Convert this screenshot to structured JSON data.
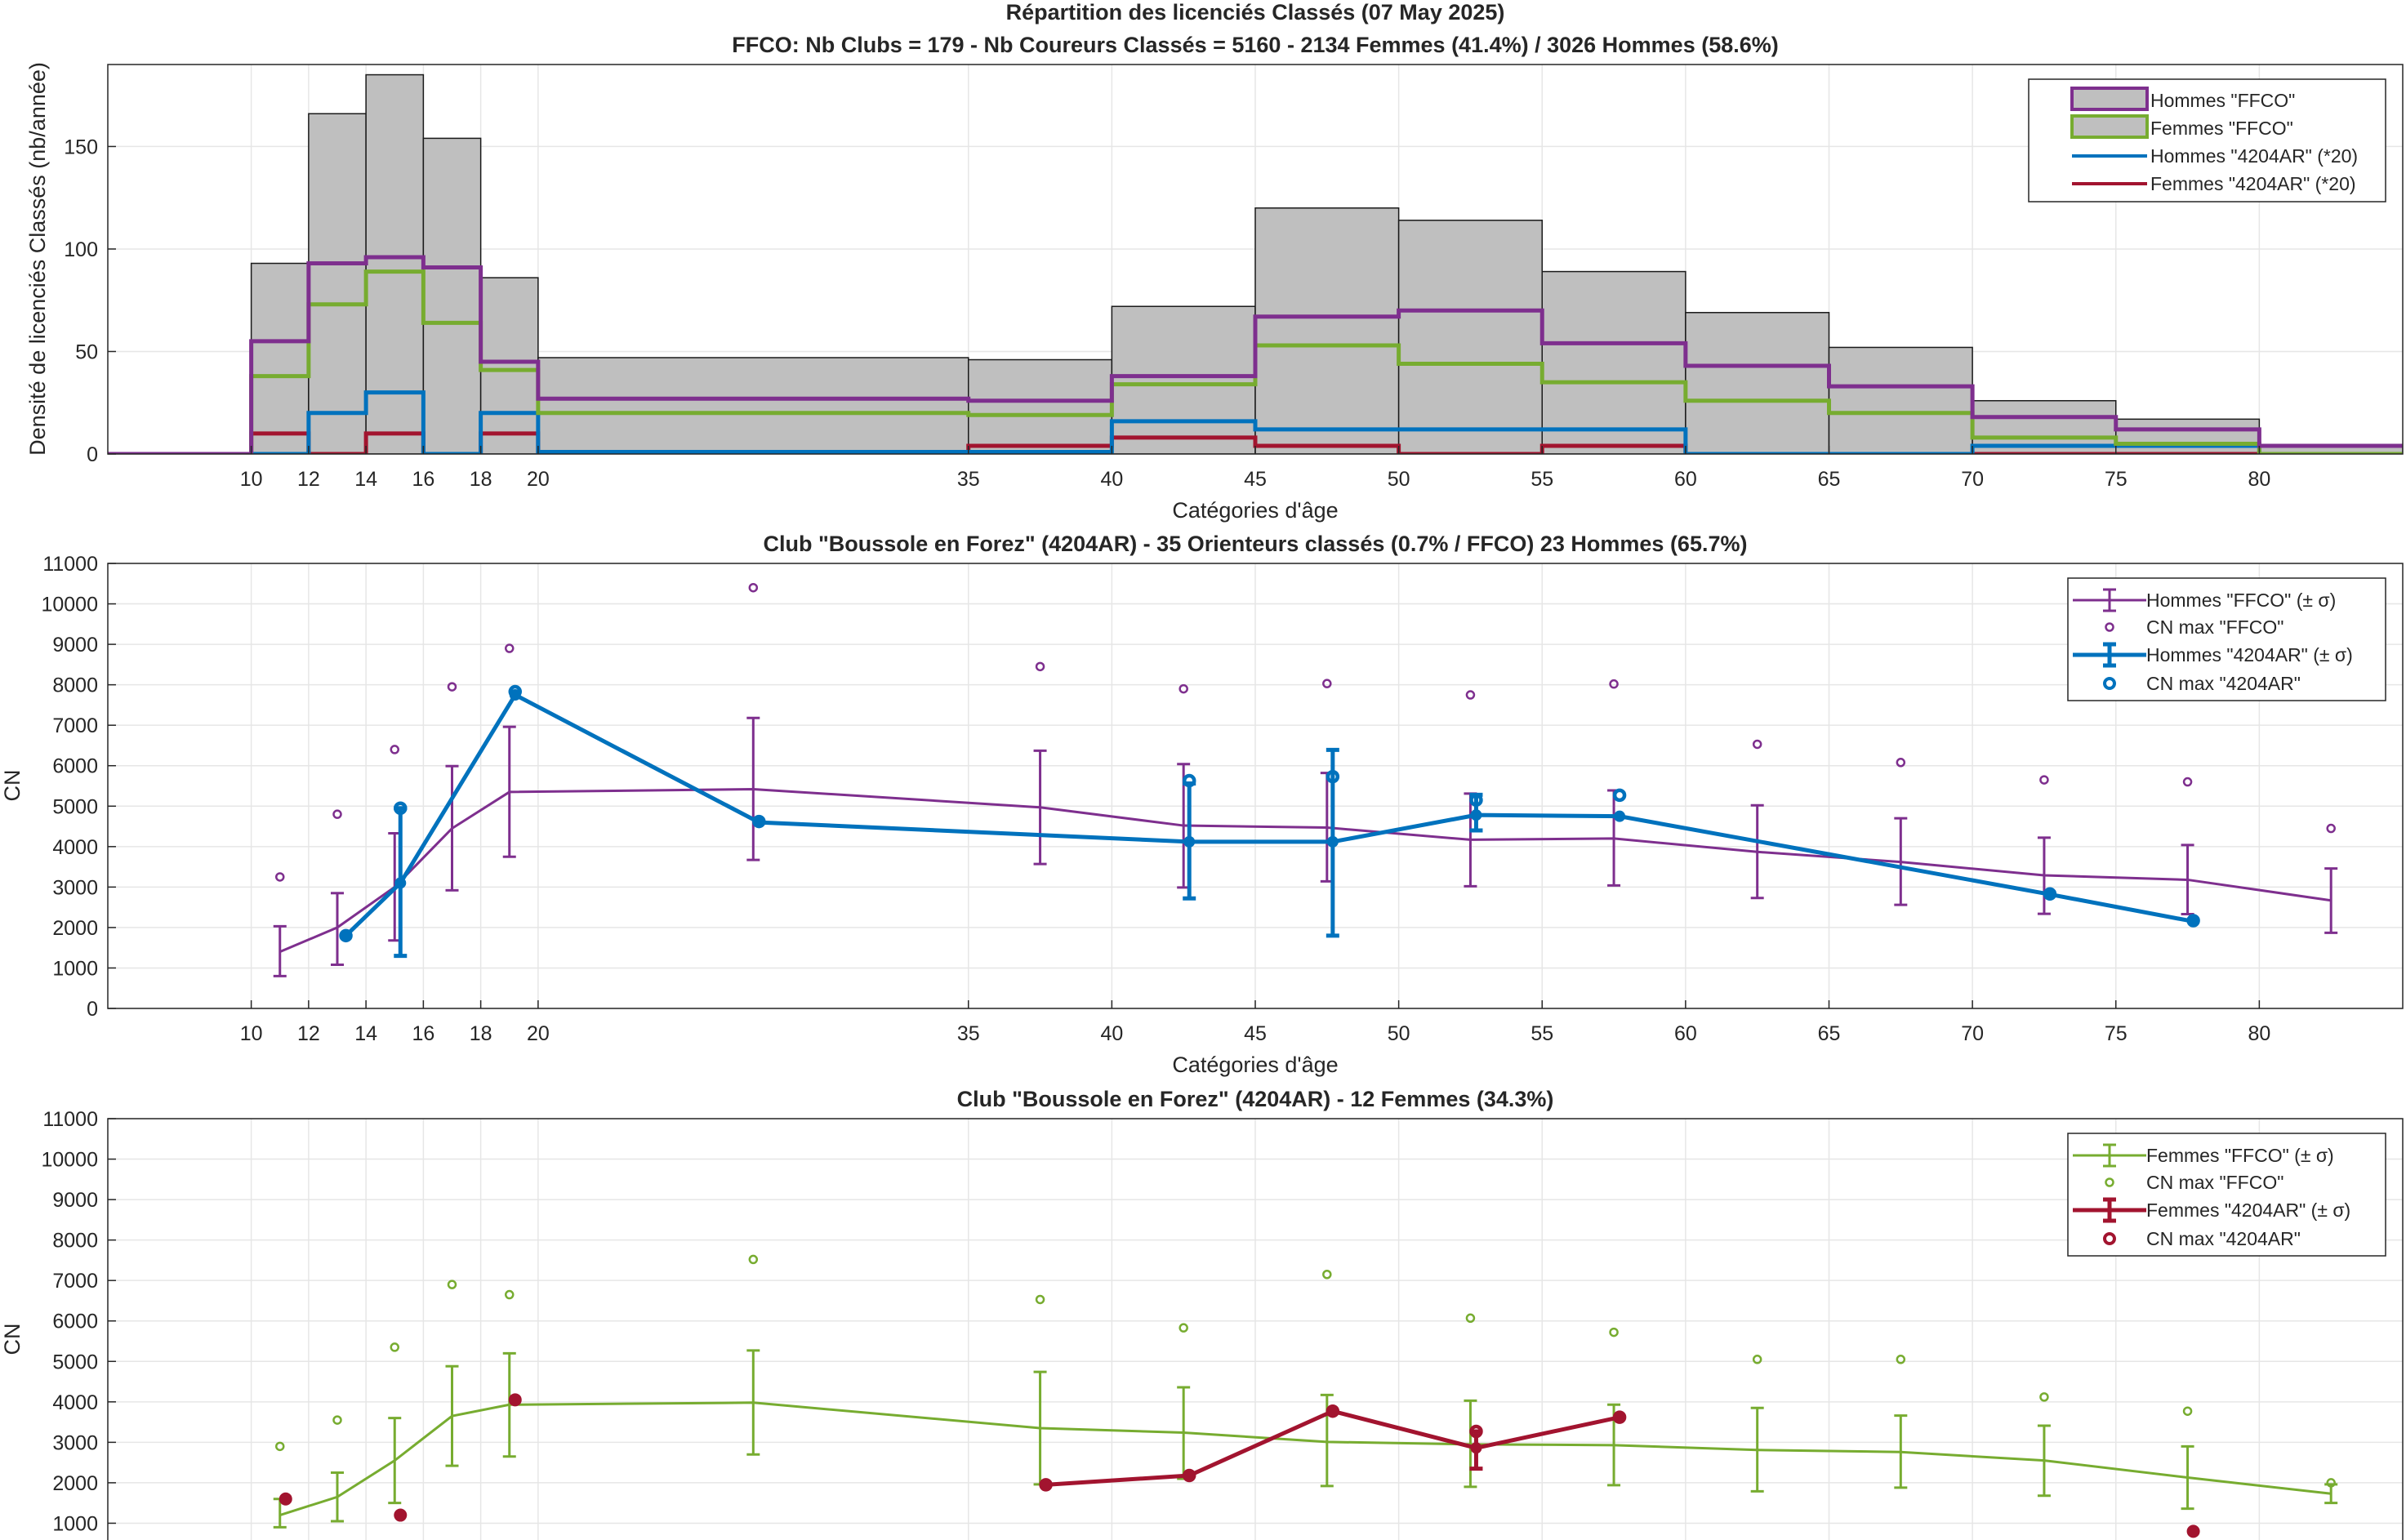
{
  "figure": {
    "title_line1": "Répartition des licenciés Classés (07 May 2025)",
    "title_line2": "FFCO: Nb Clubs = 179   -   Nb Coureurs Classés = 5160   -   2134 Femmes (41.4%) / 3026 Hommes (58.6%)"
  },
  "colors": {
    "hist_fill": "#bfbfbf",
    "men_ffco": "#7e2f8e",
    "women_ffco": "#77ac30",
    "men_club": "#0072bd",
    "women_club": "#a2142f",
    "grid": "#e6e6e6"
  },
  "chart_data": [
    {
      "type": "histogram",
      "title": "",
      "xlabel": "Catégories d'âge",
      "ylabel": "Densité de licenciés Classés (nb/année)",
      "xlim": [
        5,
        85
      ],
      "ylim": [
        0,
        190
      ],
      "xticks": [
        10,
        12,
        14,
        16,
        18,
        20,
        35,
        40,
        45,
        50,
        55,
        60,
        65,
        70,
        75,
        80
      ],
      "yticks": [
        0,
        50,
        100,
        150
      ],
      "grid": true,
      "legend_location": "top-right",
      "bin_edges": [
        5,
        10,
        12,
        14,
        16,
        18,
        20,
        35,
        40,
        45,
        50,
        55,
        60,
        65,
        70,
        75,
        80,
        85
      ],
      "total": [
        0,
        93,
        166,
        185,
        154,
        86,
        47,
        46,
        72,
        120,
        114,
        89,
        69,
        52,
        26,
        17,
        4
      ],
      "series": [
        {
          "name": "Hommes \"FFCO\"",
          "values": [
            0,
            55,
            93,
            96,
            91,
            45,
            27,
            26,
            38,
            67,
            70,
            54,
            43,
            33,
            18,
            12,
            4
          ]
        },
        {
          "name": "Femmes \"FFCO\"",
          "values": [
            0,
            38,
            73,
            89,
            64,
            41,
            20,
            19,
            34,
            53,
            44,
            35,
            26,
            20,
            8,
            5,
            0
          ]
        },
        {
          "name": "Hommes \"4204AR\" (*20)",
          "values": [
            0,
            0,
            20,
            30,
            0,
            20,
            1,
            1,
            16,
            12,
            12,
            12,
            0,
            0,
            4,
            4,
            0
          ]
        },
        {
          "name": "Femmes \"4204AR\" (*20)",
          "values": [
            0,
            10,
            0,
            10,
            0,
            10,
            0,
            4,
            8,
            4,
            0,
            4,
            0,
            0,
            0,
            0,
            0
          ]
        }
      ]
    },
    {
      "type": "errorbar",
      "title": "Club \"Boussole en Forez\" (4204AR)  -  35 Orienteurs classés (0.7% / FFCO)  23 Hommes (65.7%)",
      "xlabel": "Catégories d'âge",
      "ylabel": "CN",
      "xlim": [
        5,
        85
      ],
      "ylim": [
        0,
        11000
      ],
      "xticks": [
        10,
        12,
        14,
        16,
        18,
        20,
        35,
        40,
        45,
        50,
        55,
        60,
        65,
        70,
        75,
        80
      ],
      "yticks": [
        0,
        1000,
        2000,
        3000,
        4000,
        5000,
        6000,
        7000,
        8000,
        9000,
        10000,
        11000
      ],
      "grid": true,
      "legend_location": "top-right",
      "ffco": {
        "name": "Hommes \"FFCO\" (± σ)",
        "max_name": "CN max \"FFCO\"",
        "x": [
          11,
          13,
          15,
          17,
          19,
          27.5,
          37.5,
          42.5,
          47.5,
          52.5,
          57.5,
          62.5,
          67.5,
          72.5,
          77.5,
          82.5
        ],
        "mean": [
          1400,
          2000,
          3000,
          4450,
          5350,
          5420,
          4970,
          4520,
          4470,
          4170,
          4200,
          3870,
          3620,
          3290,
          3180,
          2670
        ],
        "low": [
          800,
          1080,
          1680,
          2920,
          3750,
          3670,
          3570,
          2990,
          3140,
          3020,
          3040,
          2730,
          2560,
          2340,
          2330,
          1870
        ],
        "high": [
          2030,
          2850,
          4330,
          5990,
          6960,
          7180,
          6370,
          6040,
          5820,
          5310,
          5390,
          5020,
          4700,
          4220,
          4040,
          3460
        ],
        "cn_max": [
          3250,
          4800,
          6400,
          7950,
          8900,
          10400,
          8450,
          7900,
          8030,
          7750,
          8020,
          6530,
          6080,
          5650,
          5600,
          4450
        ]
      },
      "club": {
        "name": "Hommes \"4204AR\" (± σ)",
        "max_name": "CN max \"4204AR\"",
        "x": [
          13.3,
          15.2,
          19.2,
          27.7,
          42.7,
          47.7,
          52.7,
          57.7,
          72.7,
          77.7
        ],
        "mean": [
          1800,
          3100,
          7750,
          4600,
          4120,
          4120,
          4780,
          4750,
          2820,
          2150
        ],
        "low": [
          null,
          1300,
          null,
          null,
          2720,
          1800,
          4400,
          null,
          null,
          null
        ],
        "high": [
          null,
          4950,
          null,
          null,
          5560,
          6390,
          5280,
          null,
          null,
          null
        ],
        "cn_max": [
          1800,
          4950,
          7830,
          4620,
          5630,
          5730,
          5150,
          5270,
          2830,
          2170
        ]
      }
    },
    {
      "type": "errorbar",
      "title": "Club \"Boussole en Forez\" (4204AR)  -  12 Femmes (34.3%)",
      "xlabel": "",
      "ylabel": "CN",
      "xlim": [
        5,
        85
      ],
      "ylim": [
        0,
        11000
      ],
      "yticks": [
        1000,
        2000,
        3000,
        4000,
        5000,
        6000,
        7000,
        8000,
        9000,
        10000,
        11000
      ],
      "grid": true,
      "legend_location": "top-right",
      "ffco": {
        "name": "Femmes \"FFCO\" (± σ)",
        "max_name": "CN max \"FFCO\"",
        "x": [
          11,
          13,
          15,
          17,
          19,
          27.5,
          37.5,
          42.5,
          47.5,
          52.5,
          57.5,
          62.5,
          67.5,
          72.5,
          77.5,
          82.5
        ],
        "mean": [
          1200,
          1650,
          2550,
          3650,
          3930,
          3980,
          3350,
          3240,
          3010,
          2950,
          2930,
          2810,
          2760,
          2550,
          2130,
          1730
        ],
        "low": [
          900,
          1050,
          1500,
          2420,
          2650,
          2700,
          1960,
          2100,
          1920,
          1900,
          1940,
          1790,
          1880,
          1680,
          1360,
          1500
        ],
        "high": [
          1600,
          2250,
          3600,
          4880,
          5200,
          5270,
          4740,
          4360,
          4170,
          4030,
          3930,
          3850,
          3660,
          3410,
          2900,
          1960
        ],
        "cn_max": [
          2900,
          3550,
          5350,
          6900,
          6650,
          7520,
          6530,
          5830,
          7150,
          6070,
          5720,
          5050,
          5050,
          4120,
          3770,
          2000
        ]
      },
      "club": {
        "name": "Femmes \"4204AR\" (± σ)",
        "max_name": "CN max \"4204AR\"",
        "x": [
          37.7,
          42.7,
          47.7,
          52.7,
          57.7
        ],
        "mean": [
          1950,
          2180,
          3770,
          2860,
          3620
        ],
        "low": [
          null,
          null,
          null,
          2350,
          null
        ],
        "high": [
          null,
          null,
          null,
          3270,
          null
        ],
        "cn_max": [
          1950,
          2180,
          3770,
          3270,
          3620
        ],
        "outliers_x": [
          11.2,
          15.2,
          19.2,
          77.7
        ],
        "outliers_cn": [
          1600,
          1200,
          4050,
          800
        ]
      }
    }
  ]
}
